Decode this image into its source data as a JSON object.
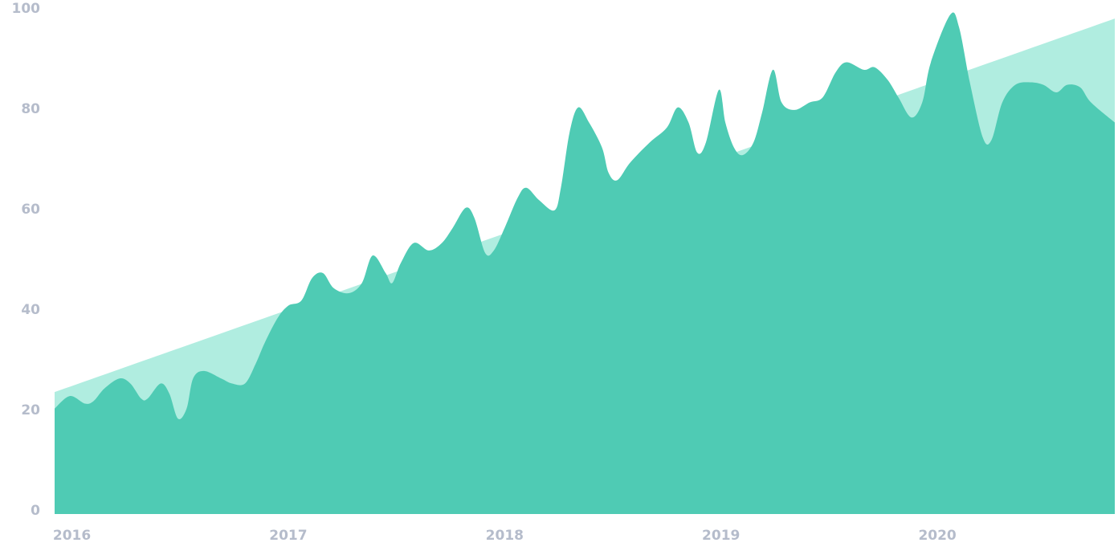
{
  "chart_data": {
    "type": "area",
    "xlim": [
      2015.92,
      2020.82
    ],
    "xticks": [
      2016,
      2017,
      2018,
      2019,
      2020
    ],
    "ylim": [
      0,
      100
    ],
    "yticks": [
      0,
      20,
      40,
      60,
      80,
      100
    ],
    "series": [
      {
        "color": "#b0ede0",
        "x": [
          2015.92,
          2020.82
        ],
        "values": [
          24.3,
          98.7
        ]
      },
      {
        "color": "#4fcbb4",
        "x": [
          2015.92,
          2015.99,
          2016.06,
          2016.1,
          2016.15,
          2016.22,
          2016.27,
          2016.32,
          2016.35,
          2016.41,
          2016.45,
          2016.49,
          2016.53,
          2016.56,
          2016.61,
          2016.69,
          2016.74,
          2016.8,
          2016.85,
          2016.89,
          2016.95,
          2017.0,
          2017.06,
          2017.11,
          2017.16,
          2017.21,
          2017.28,
          2017.34,
          2017.39,
          2017.45,
          2017.48,
          2017.52,
          2017.58,
          2017.65,
          2017.71,
          2017.76,
          2017.82,
          2017.86,
          2017.91,
          2017.95,
          2018.0,
          2018.06,
          2018.1,
          2018.16,
          2018.23,
          2018.26,
          2018.3,
          2018.34,
          2018.39,
          2018.45,
          2018.48,
          2018.52,
          2018.58,
          2018.67,
          2018.75,
          2018.8,
          2018.85,
          2018.89,
          2018.93,
          2018.99,
          2019.02,
          2019.06,
          2019.1,
          2019.15,
          2019.19,
          2019.24,
          2019.28,
          2019.34,
          2019.41,
          2019.47,
          2019.53,
          2019.58,
          2019.66,
          2019.71,
          2019.77,
          2019.82,
          2019.88,
          2019.93,
          2019.97,
          2020.06,
          2020.1,
          2020.15,
          2020.21,
          2020.25,
          2020.3,
          2020.36,
          2020.43,
          2020.49,
          2020.55,
          2020.6,
          2020.66,
          2020.71,
          2020.82
        ],
        "values": [
          21,
          23.5,
          22,
          22.5,
          25,
          27,
          26,
          23,
          23,
          26,
          24,
          19,
          21,
          27,
          28.5,
          27,
          26,
          26,
          30,
          34,
          39,
          41.5,
          42.5,
          47,
          48,
          45,
          44,
          46,
          51.5,
          48,
          46,
          50,
          54,
          52.5,
          54,
          57,
          61,
          59,
          52,
          52.5,
          57,
          63,
          65,
          62.5,
          60.5,
          65,
          76,
          81,
          78,
          73,
          68,
          66.5,
          70,
          74,
          77,
          81,
          78,
          72,
          74,
          84.5,
          78,
          73,
          71.5,
          74,
          80,
          88.5,
          82,
          80.5,
          82,
          83,
          88,
          90,
          88.5,
          89,
          86.5,
          83,
          79,
          82,
          90,
          99.5,
          97,
          86,
          75,
          74.5,
          82,
          85.5,
          86,
          85.5,
          84,
          85.5,
          85,
          82,
          78
        ]
      }
    ]
  }
}
